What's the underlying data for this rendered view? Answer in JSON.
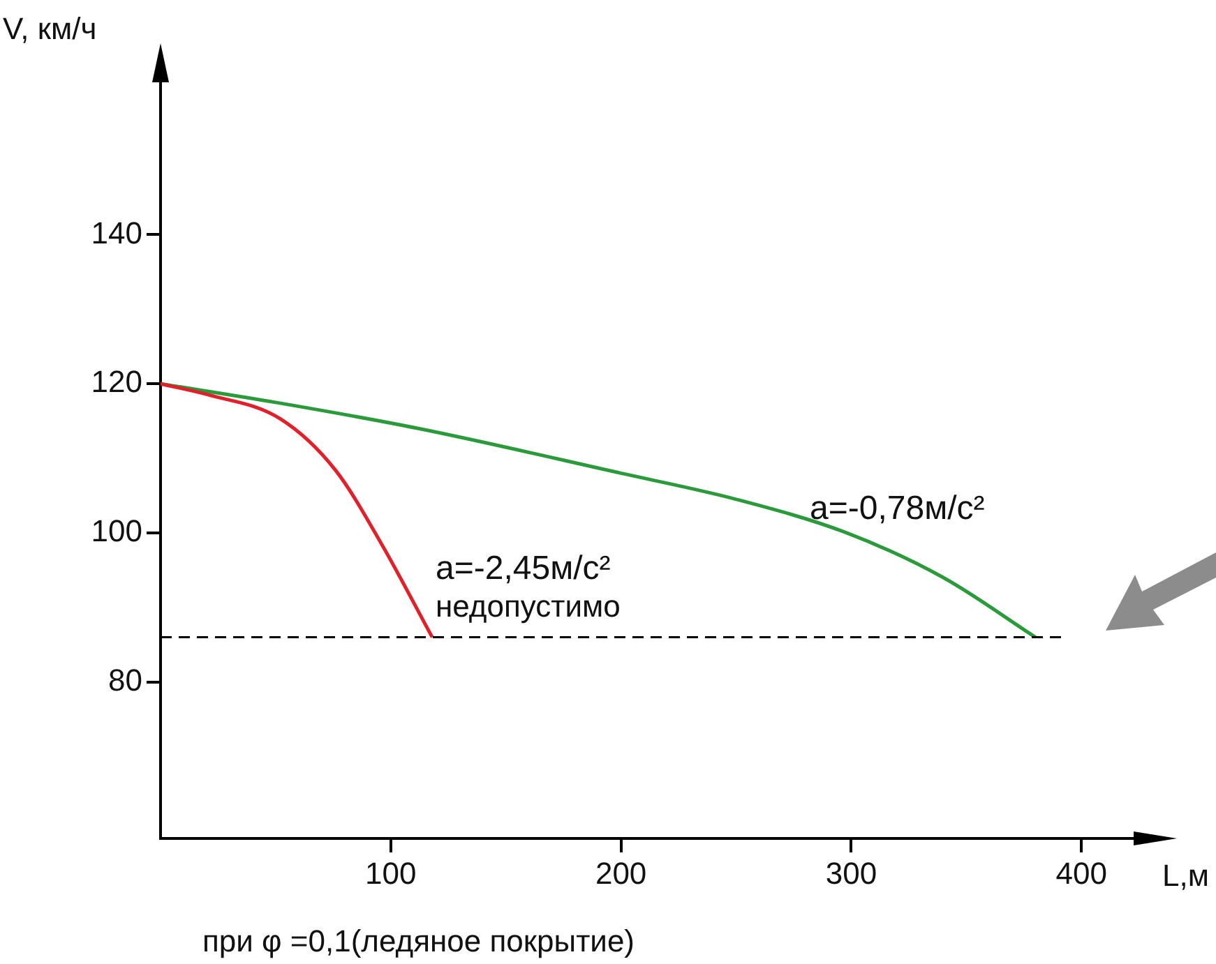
{
  "chart_data": {
    "type": "line",
    "xlabel": "L,м",
    "ylabel": "V, км/ч",
    "xlim": [
      0,
      436
    ],
    "xticks": [
      100,
      200,
      300,
      400
    ],
    "ylim": [
      59,
      164
    ],
    "yticks": [
      80,
      100,
      120,
      140
    ],
    "grid": false,
    "legend": false,
    "marker": "none",
    "line_style": "solid",
    "series": [
      {
        "color": "#e0202a",
        "x": [
          0,
          21,
          52,
          76,
          96,
          118
        ],
        "values": [
          120,
          118.5,
          115.3,
          108.4,
          98.5,
          86
        ]
      },
      {
        "color": "#2a9a3a",
        "x": [
          0,
          50,
          112,
          200,
          250,
          298,
          340,
          380
        ],
        "values": [
          120,
          117.5,
          114,
          108,
          104.5,
          100,
          94,
          86
        ]
      }
    ],
    "ref_lines": [
      {
        "axis": "y",
        "value": 86,
        "color": "#000000",
        "line_style": "dashed"
      }
    ],
    "annotations": [
      "a=-2,45м/с²",
      "недопустимо",
      "a=-0,78м/с²",
      "при φ =0,1(ледяное покрытие)"
    ]
  }
}
